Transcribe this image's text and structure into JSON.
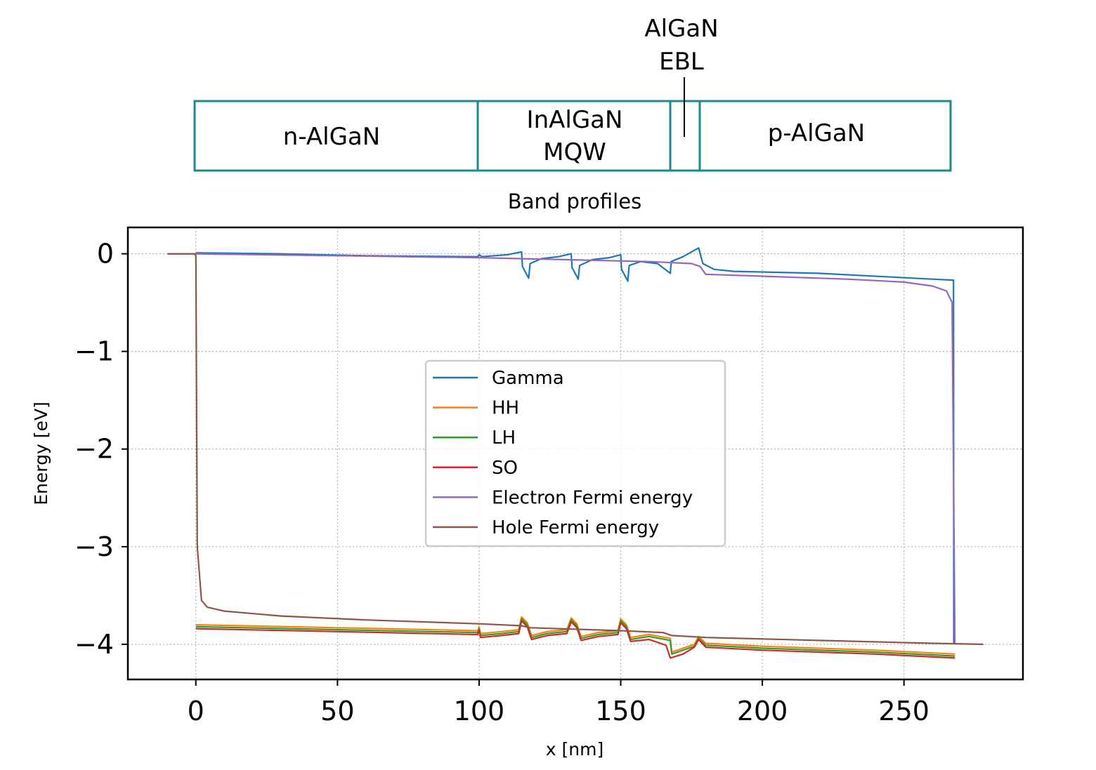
{
  "diagram": {
    "layers": [
      {
        "label_lines": [
          "n-AlGaN"
        ]
      },
      {
        "label_lines": [
          "InAlGaN",
          "MQW"
        ]
      },
      {
        "label_lines": []
      },
      {
        "label_lines": [
          "p-AlGaN"
        ]
      }
    ],
    "callout_lines": [
      "AlGaN",
      "EBL"
    ],
    "box_color": "#1a8a8a"
  },
  "chart_data": {
    "type": "line",
    "title": "Band profiles",
    "xlabel": "x [nm]",
    "ylabel": "Energy [eV]",
    "xlim": [
      -24,
      292
    ],
    "ylim": [
      -4.36,
      0.27
    ],
    "xticks": [
      0,
      50,
      100,
      150,
      200,
      250
    ],
    "xtick_labels": [
      "0",
      "50",
      "100",
      "150",
      "200",
      "250"
    ],
    "yticks": [
      0,
      -1,
      -2,
      -3,
      -4
    ],
    "ytick_labels": [
      "0",
      "−1",
      "−2",
      "−3",
      "−4"
    ],
    "grid": true,
    "legend_position": "center",
    "series": [
      {
        "name": "Gamma",
        "color": "#1f77b4",
        "points": [
          [
            0,
            0.01
          ],
          [
            30,
            0.0
          ],
          [
            60,
            -0.02
          ],
          [
            99.5,
            -0.03
          ],
          [
            100,
            -0.01
          ],
          [
            101,
            -0.03
          ],
          [
            110,
            -0.01
          ],
          [
            115,
            0.02
          ],
          [
            115.3,
            -0.13
          ],
          [
            117.5,
            -0.25
          ],
          [
            118,
            -0.1
          ],
          [
            122,
            -0.05
          ],
          [
            128,
            -0.03
          ],
          [
            132.5,
            0.0
          ],
          [
            132.8,
            -0.14
          ],
          [
            135,
            -0.26
          ],
          [
            135.5,
            -0.12
          ],
          [
            140,
            -0.06
          ],
          [
            146,
            -0.04
          ],
          [
            150,
            -0.01
          ],
          [
            150.3,
            -0.16
          ],
          [
            152.5,
            -0.28
          ],
          [
            153,
            -0.12
          ],
          [
            157,
            -0.08
          ],
          [
            163,
            -0.1
          ],
          [
            167.5,
            -0.2
          ],
          [
            167.8,
            -0.08
          ],
          [
            172,
            -0.03
          ],
          [
            177.5,
            0.06
          ],
          [
            179,
            -0.1
          ],
          [
            183,
            -0.16
          ],
          [
            190,
            -0.18
          ],
          [
            220,
            -0.2
          ],
          [
            260,
            -0.26
          ],
          [
            267.5,
            -0.27
          ],
          [
            267.6,
            -4.0
          ]
        ]
      },
      {
        "name": "HH",
        "color": "#ff7f0e",
        "points": [
          [
            0,
            -3.8
          ],
          [
            50,
            -3.83
          ],
          [
            99.5,
            -3.86
          ],
          [
            100,
            -3.82
          ],
          [
            100.5,
            -3.89
          ],
          [
            108,
            -3.87
          ],
          [
            114,
            -3.85
          ],
          [
            115,
            -3.72
          ],
          [
            117,
            -3.78
          ],
          [
            118.5,
            -3.91
          ],
          [
            124,
            -3.87
          ],
          [
            131,
            -3.85
          ],
          [
            132.5,
            -3.73
          ],
          [
            134.5,
            -3.79
          ],
          [
            136,
            -3.92
          ],
          [
            142,
            -3.88
          ],
          [
            149,
            -3.86
          ],
          [
            150,
            -3.74
          ],
          [
            152,
            -3.8
          ],
          [
            153.5,
            -3.93
          ],
          [
            160,
            -3.9
          ],
          [
            167.5,
            -3.94
          ],
          [
            168,
            -4.08
          ],
          [
            172,
            -4.04
          ],
          [
            176,
            -4.0
          ],
          [
            177.5,
            -3.92
          ],
          [
            180,
            -3.99
          ],
          [
            200,
            -4.02
          ],
          [
            240,
            -4.06
          ],
          [
            268,
            -4.1
          ]
        ]
      },
      {
        "name": "LH",
        "color": "#2ca02c",
        "points": [
          [
            0,
            -3.82
          ],
          [
            50,
            -3.85
          ],
          [
            99.5,
            -3.88
          ],
          [
            100,
            -3.84
          ],
          [
            100.5,
            -3.91
          ],
          [
            108,
            -3.89
          ],
          [
            114,
            -3.87
          ],
          [
            115,
            -3.74
          ],
          [
            117,
            -3.8
          ],
          [
            118.5,
            -3.93
          ],
          [
            124,
            -3.89
          ],
          [
            131,
            -3.87
          ],
          [
            132.5,
            -3.75
          ],
          [
            134.5,
            -3.81
          ],
          [
            136,
            -3.94
          ],
          [
            142,
            -3.9
          ],
          [
            149,
            -3.88
          ],
          [
            150,
            -3.76
          ],
          [
            152,
            -3.82
          ],
          [
            153.5,
            -3.95
          ],
          [
            160,
            -3.92
          ],
          [
            167.5,
            -3.96
          ],
          [
            168,
            -4.1
          ],
          [
            172,
            -4.06
          ],
          [
            176,
            -4.02
          ],
          [
            177.5,
            -3.94
          ],
          [
            180,
            -4.01
          ],
          [
            200,
            -4.04
          ],
          [
            240,
            -4.08
          ],
          [
            268,
            -4.12
          ]
        ]
      },
      {
        "name": "SO",
        "color": "#d62728",
        "points": [
          [
            0,
            -3.84
          ],
          [
            50,
            -3.87
          ],
          [
            99.5,
            -3.9
          ],
          [
            100,
            -3.86
          ],
          [
            100.5,
            -3.93
          ],
          [
            108,
            -3.91
          ],
          [
            114,
            -3.89
          ],
          [
            115,
            -3.76
          ],
          [
            117,
            -3.82
          ],
          [
            118.5,
            -3.95
          ],
          [
            124,
            -3.91
          ],
          [
            131,
            -3.89
          ],
          [
            132.5,
            -3.77
          ],
          [
            134.5,
            -3.83
          ],
          [
            136,
            -3.96
          ],
          [
            142,
            -3.92
          ],
          [
            149,
            -3.9
          ],
          [
            150,
            -3.78
          ],
          [
            152,
            -3.84
          ],
          [
            153.5,
            -3.97
          ],
          [
            160,
            -3.95
          ],
          [
            166,
            -4.01
          ],
          [
            167.5,
            -4.14
          ],
          [
            172,
            -4.1
          ],
          [
            176,
            -4.03
          ],
          [
            177.5,
            -3.95
          ],
          [
            180,
            -4.03
          ],
          [
            200,
            -4.06
          ],
          [
            240,
            -4.1
          ],
          [
            268,
            -4.14
          ]
        ]
      },
      {
        "name": "Electron Fermi energy",
        "color": "#9467bd",
        "points": [
          [
            -10,
            0.0
          ],
          [
            0,
            0.0
          ],
          [
            50,
            -0.02
          ],
          [
            100,
            -0.04
          ],
          [
            130,
            -0.06
          ],
          [
            160,
            -0.08
          ],
          [
            175,
            -0.1
          ],
          [
            178,
            -0.13
          ],
          [
            180,
            -0.21
          ],
          [
            200,
            -0.23
          ],
          [
            230,
            -0.26
          ],
          [
            250,
            -0.29
          ],
          [
            260,
            -0.33
          ],
          [
            265,
            -0.38
          ],
          [
            267,
            -0.5
          ],
          [
            268,
            -4.0
          ]
        ]
      },
      {
        "name": "Hole Fermi energy",
        "color": "#8c564b",
        "points": [
          [
            -10,
            0.0
          ],
          [
            -0.5,
            0.0
          ],
          [
            0,
            -0.02
          ],
          [
            0.5,
            -3.0
          ],
          [
            2,
            -3.55
          ],
          [
            4,
            -3.62
          ],
          [
            10,
            -3.66
          ],
          [
            30,
            -3.71
          ],
          [
            60,
            -3.75
          ],
          [
            100,
            -3.79
          ],
          [
            115,
            -3.81
          ],
          [
            118,
            -3.83
          ],
          [
            150,
            -3.86
          ],
          [
            165,
            -3.88
          ],
          [
            168,
            -3.91
          ],
          [
            180,
            -3.93
          ],
          [
            220,
            -3.96
          ],
          [
            260,
            -3.99
          ],
          [
            278,
            -4.0
          ]
        ]
      }
    ]
  }
}
